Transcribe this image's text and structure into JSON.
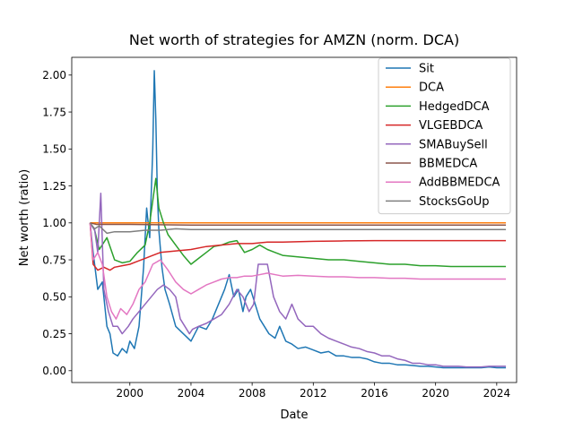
{
  "chart_data": {
    "type": "line",
    "title": "Net worth of strategies for AMZN (norm. DCA)",
    "xlabel": "Date",
    "ylabel": "Net worth (ratio)",
    "xlim": [
      1996.2,
      2025.3
    ],
    "ylim": [
      -0.08,
      2.12
    ],
    "xticks": [
      2000,
      2004,
      2008,
      2012,
      2016,
      2020,
      2024
    ],
    "yticks": [
      0.0,
      0.25,
      0.5,
      0.75,
      1.0,
      1.25,
      1.5,
      1.75,
      2.0
    ],
    "ytick_labels": [
      "0.00",
      "0.25",
      "0.50",
      "0.75",
      "1.00",
      "1.25",
      "1.50",
      "1.75",
      "2.00"
    ],
    "grid": false,
    "legend_position": "top-right",
    "series": [
      {
        "name": "Sit",
        "color": "#1f77b4",
        "x": [
          1997.4,
          1997.6,
          1997.9,
          1998.2,
          1998.5,
          1998.7,
          1998.9,
          1999.2,
          1999.5,
          1999.8,
          2000.0,
          2000.3,
          2000.6,
          2000.9,
          2001.1,
          2001.3,
          2001.5,
          2001.6,
          2001.7,
          2001.8,
          2001.9,
          2002.1,
          2002.3,
          2002.6,
          2003.0,
          2003.5,
          2004.0,
          2004.5,
          2005.0,
          2005.4,
          2005.8,
          2006.2,
          2006.5,
          2006.8,
          2007.1,
          2007.4,
          2007.6,
          2007.9,
          2008.2,
          2008.5,
          2008.8,
          2009.1,
          2009.5,
          2009.8,
          2010.2,
          2010.6,
          2011.0,
          2011.5,
          2012.0,
          2012.5,
          2013.0,
          2013.5,
          2014.0,
          2014.5,
          2015.0,
          2015.5,
          2016.0,
          2016.5,
          2017.0,
          2017.5,
          2018.0,
          2018.5,
          2019.0,
          2019.5,
          2020.0,
          2020.5,
          2021.0,
          2021.5,
          2022.0,
          2022.5,
          2023.0,
          2023.5,
          2024.0,
          2024.6
        ],
        "y": [
          1.0,
          0.8,
          0.55,
          0.6,
          0.3,
          0.25,
          0.12,
          0.1,
          0.15,
          0.12,
          0.2,
          0.15,
          0.3,
          0.7,
          1.1,
          0.9,
          1.5,
          2.03,
          1.7,
          1.2,
          0.95,
          0.7,
          0.55,
          0.45,
          0.3,
          0.25,
          0.2,
          0.3,
          0.28,
          0.35,
          0.45,
          0.55,
          0.65,
          0.5,
          0.55,
          0.4,
          0.5,
          0.55,
          0.45,
          0.35,
          0.3,
          0.25,
          0.22,
          0.3,
          0.2,
          0.18,
          0.15,
          0.16,
          0.14,
          0.12,
          0.13,
          0.1,
          0.1,
          0.09,
          0.09,
          0.08,
          0.06,
          0.05,
          0.05,
          0.04,
          0.04,
          0.035,
          0.03,
          0.03,
          0.025,
          0.02,
          0.02,
          0.02,
          0.02,
          0.02,
          0.02,
          0.025,
          0.02,
          0.02
        ]
      },
      {
        "name": "DCA",
        "color": "#ff7f0e",
        "x": [
          1997.4,
          2024.6
        ],
        "y": [
          1.0,
          1.0
        ]
      },
      {
        "name": "HedgedDCA",
        "color": "#2ca02c",
        "x": [
          1997.4,
          1997.7,
          1998.0,
          1998.5,
          1999.0,
          1999.5,
          2000.0,
          2000.5,
          2001.0,
          2001.3,
          2001.5,
          2001.7,
          2001.9,
          2002.2,
          2002.5,
          2003.0,
          2003.5,
          2004.0,
          2004.5,
          2005.0,
          2005.5,
          2006.0,
          2006.5,
          2007.0,
          2007.5,
          2008.0,
          2008.5,
          2009.0,
          2009.5,
          2010.0,
          2011.0,
          2012.0,
          2013.0,
          2014.0,
          2015.0,
          2016.0,
          2017.0,
          2018.0,
          2019.0,
          2020.0,
          2021.0,
          2022.0,
          2023.0,
          2024.6
        ],
        "y": [
          1.0,
          0.95,
          0.82,
          0.9,
          0.75,
          0.73,
          0.74,
          0.8,
          0.85,
          1.0,
          1.15,
          1.3,
          1.1,
          1.0,
          0.92,
          0.85,
          0.78,
          0.72,
          0.76,
          0.8,
          0.84,
          0.85,
          0.87,
          0.88,
          0.8,
          0.82,
          0.85,
          0.82,
          0.8,
          0.78,
          0.77,
          0.76,
          0.75,
          0.75,
          0.74,
          0.73,
          0.72,
          0.72,
          0.71,
          0.71,
          0.705,
          0.705,
          0.705,
          0.705
        ]
      },
      {
        "name": "VLGEBDCA",
        "color": "#d62728",
        "x": [
          1997.4,
          1997.6,
          1997.9,
          1998.3,
          1998.7,
          1999.0,
          1999.5,
          2000.0,
          2000.5,
          2001.0,
          2001.5,
          2002.0,
          2003.0,
          2004.0,
          2005.0,
          2006.0,
          2007.0,
          2008.0,
          2009.0,
          2010.0,
          2012.0,
          2014.0,
          2016.0,
          2018.0,
          2020.0,
          2022.0,
          2024.6
        ],
        "y": [
          1.0,
          0.72,
          0.68,
          0.7,
          0.68,
          0.7,
          0.71,
          0.72,
          0.74,
          0.76,
          0.78,
          0.8,
          0.81,
          0.82,
          0.84,
          0.85,
          0.86,
          0.86,
          0.87,
          0.87,
          0.875,
          0.878,
          0.88,
          0.88,
          0.88,
          0.88,
          0.88
        ]
      },
      {
        "name": "SMABuySell",
        "color": "#9467bd",
        "x": [
          1997.4,
          1997.7,
          1997.9,
          1998.1,
          1998.3,
          1998.6,
          1998.9,
          1999.2,
          1999.5,
          1999.9,
          2000.2,
          2000.6,
          2001.0,
          2001.4,
          2001.8,
          2002.2,
          2002.6,
          2003.0,
          2003.3,
          2003.6,
          2003.9,
          2004.1,
          2004.5,
          2005.0,
          2005.5,
          2006.0,
          2006.5,
          2007.0,
          2007.4,
          2007.8,
          2008.1,
          2008.4,
          2008.7,
          2009.0,
          2009.4,
          2009.8,
          2010.2,
          2010.6,
          2011.0,
          2011.5,
          2012.0,
          2012.5,
          2013.0,
          2013.5,
          2014.0,
          2014.5,
          2015.0,
          2015.5,
          2016.0,
          2016.5,
          2017.0,
          2017.5,
          2018.0,
          2018.5,
          2019.0,
          2019.5,
          2020.0,
          2020.5,
          2021.0,
          2021.5,
          2022.0,
          2022.5,
          2023.0,
          2023.5,
          2024.0,
          2024.6
        ],
        "y": [
          1.0,
          0.95,
          0.8,
          1.2,
          0.55,
          0.4,
          0.3,
          0.3,
          0.25,
          0.3,
          0.35,
          0.4,
          0.45,
          0.5,
          0.55,
          0.58,
          0.55,
          0.5,
          0.35,
          0.3,
          0.25,
          0.28,
          0.3,
          0.32,
          0.35,
          0.38,
          0.45,
          0.55,
          0.5,
          0.4,
          0.45,
          0.72,
          0.72,
          0.72,
          0.5,
          0.4,
          0.35,
          0.45,
          0.35,
          0.3,
          0.3,
          0.25,
          0.22,
          0.2,
          0.18,
          0.16,
          0.15,
          0.13,
          0.12,
          0.1,
          0.1,
          0.08,
          0.07,
          0.05,
          0.05,
          0.04,
          0.04,
          0.03,
          0.03,
          0.03,
          0.025,
          0.025,
          0.025,
          0.03,
          0.03,
          0.03
        ]
      },
      {
        "name": "BBMEDCA",
        "color": "#8c564b",
        "x": [
          1997.4,
          1997.8,
          1998.5,
          2000.0,
          2004.0,
          2008.0,
          2012.0,
          2016.0,
          2020.0,
          2024.6
        ],
        "y": [
          1.0,
          0.99,
          0.99,
          0.99,
          0.985,
          0.985,
          0.985,
          0.985,
          0.985,
          0.985
        ]
      },
      {
        "name": "AddBBMEDCA",
        "color": "#e377c2",
        "x": [
          1997.4,
          1997.6,
          1997.9,
          1998.2,
          1998.5,
          1998.8,
          1999.1,
          1999.4,
          1999.8,
          2000.2,
          2000.6,
          2001.0,
          2001.5,
          2002.0,
          2002.5,
          2003.0,
          2003.5,
          2004.0,
          2004.5,
          2005.0,
          2005.5,
          2006.0,
          2006.5,
          2007.0,
          2007.5,
          2008.0,
          2008.5,
          2009.0,
          2009.5,
          2010.0,
          2011.0,
          2012.0,
          2013.0,
          2014.0,
          2015.0,
          2016.0,
          2017.0,
          2018.0,
          2019.0,
          2020.0,
          2021.0,
          2022.0,
          2023.0,
          2024.6
        ],
        "y": [
          1.0,
          0.75,
          0.8,
          0.72,
          0.5,
          0.4,
          0.35,
          0.42,
          0.38,
          0.45,
          0.55,
          0.6,
          0.72,
          0.75,
          0.68,
          0.6,
          0.55,
          0.52,
          0.55,
          0.58,
          0.6,
          0.62,
          0.63,
          0.63,
          0.64,
          0.64,
          0.65,
          0.66,
          0.65,
          0.64,
          0.645,
          0.64,
          0.635,
          0.635,
          0.63,
          0.63,
          0.625,
          0.625,
          0.62,
          0.62,
          0.62,
          0.62,
          0.62,
          0.62
        ]
      },
      {
        "name": "StocksGoUp",
        "color": "#7f7f7f",
        "x": [
          1997.4,
          1997.7,
          1998.0,
          1998.5,
          1999.0,
          2000.0,
          2001.0,
          2002.0,
          2003.0,
          2004.0,
          2006.0,
          2008.0,
          2012.0,
          2016.0,
          2020.0,
          2024.6
        ],
        "y": [
          1.0,
          0.96,
          0.98,
          0.93,
          0.94,
          0.94,
          0.95,
          0.95,
          0.96,
          0.955,
          0.955,
          0.955,
          0.955,
          0.955,
          0.955,
          0.955
        ]
      }
    ]
  }
}
